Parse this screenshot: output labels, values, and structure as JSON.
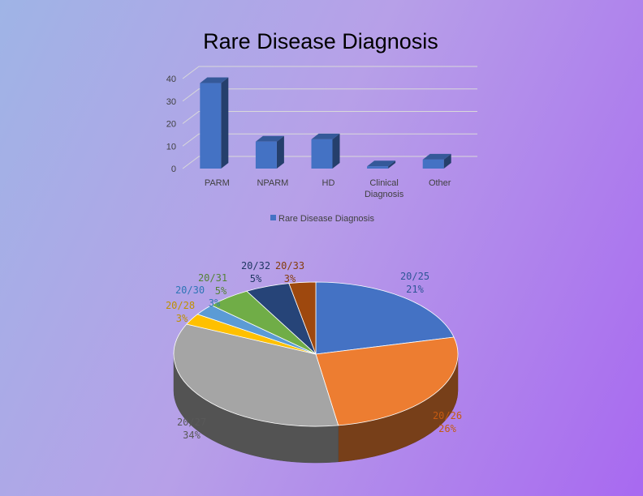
{
  "chart_data": [
    {
      "type": "bar",
      "title": "Rare Disease Diagnosis",
      "categories": [
        "PARM",
        "NPARM",
        "HD",
        "Clinical Diagnosis",
        "Other"
      ],
      "series": [
        {
          "name": "Rare Disease Diagnosis",
          "values": [
            38,
            12,
            13,
            1,
            4
          ],
          "color": "#4472c4"
        }
      ],
      "y_ticks": [
        "0",
        "10",
        "20",
        "30",
        "40"
      ],
      "ylim": [
        0,
        40
      ],
      "style": "3d-column",
      "grid": true,
      "legend": "bottom"
    },
    {
      "type": "pie",
      "style": "3d",
      "slices": [
        {
          "label": "20/25",
          "pct_label": "21%",
          "value": 21,
          "color": "#4472c4",
          "label_color": "#2f5597"
        },
        {
          "label": "20/26",
          "pct_label": "26%",
          "value": 26,
          "color": "#ed7d31",
          "label_color": "#c55a11"
        },
        {
          "label": "20/27",
          "pct_label": "34%",
          "value": 34,
          "color": "#a5a5a5",
          "label_color": "#595959"
        },
        {
          "label": "20/28",
          "pct_label": "3%",
          "value": 2.5,
          "color": "#ffc000",
          "label_color": "#bf9000"
        },
        {
          "label": "20/30",
          "pct_label": "3%",
          "value": 2.5,
          "color": "#5b9bd5",
          "label_color": "#2e75b6"
        },
        {
          "label": "20/31",
          "pct_label": "5%",
          "value": 5,
          "color": "#70ad47",
          "label_color": "#548235"
        },
        {
          "label": "20/32",
          "pct_label": "5%",
          "value": 5,
          "color": "#264478",
          "label_color": "#203864"
        },
        {
          "label": "20/33",
          "pct_label": "3%",
          "value": 3,
          "color": "#9e480e",
          "label_color": "#843c0c"
        }
      ]
    }
  ]
}
